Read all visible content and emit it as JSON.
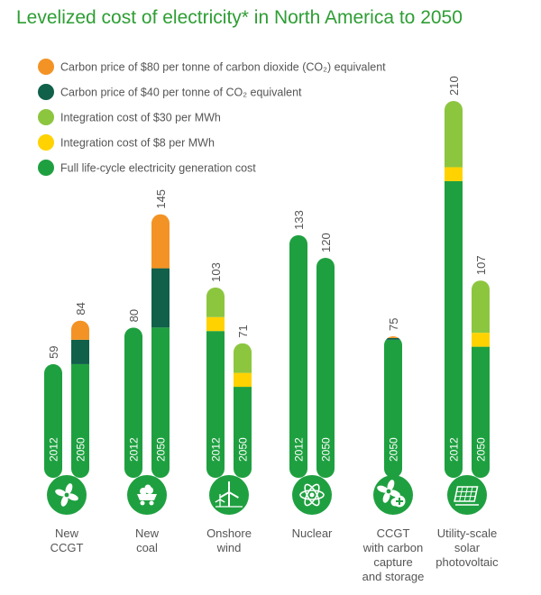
{
  "title": "Levelized cost of electricity* in North America to 2050",
  "colors": {
    "carbon80": "#f39325",
    "carbon40": "#10604a",
    "integration30": "#8cc63f",
    "integration8": "#ffd200",
    "base": "#1fa040"
  },
  "legend": [
    {
      "key": "carbon80",
      "label": "Carbon price of $80 per tonne of carbon dioxide (CO₂) equivalent"
    },
    {
      "key": "carbon40",
      "label": "Carbon price of $40 per tonne of CO₂ equivalent"
    },
    {
      "key": "integration30",
      "label": "Integration cost of $30 per MWh"
    },
    {
      "key": "integration8",
      "label": "Integration cost of $8 per MWh"
    },
    {
      "key": "base",
      "label": "Full life-cycle electricity generation cost"
    }
  ],
  "chart_data": {
    "type": "bar",
    "title": "Levelized cost of electricity* in North America to 2050",
    "stacked": true,
    "legend_position": "top-left",
    "ylim": [
      0,
      210
    ],
    "series_order": [
      "base",
      "integration8",
      "integration30",
      "carbon40",
      "carbon80"
    ],
    "series_names": {
      "carbon80": "Carbon price of $80 per tonne of carbon dioxide (CO₂) equivalent",
      "carbon40": "Carbon price of $40 per tonne of CO₂ equivalent",
      "integration30": "Integration cost of $30 per MWh",
      "integration8": "Integration cost of $8 per MWh",
      "base": "Full life-cycle electricity generation cost"
    },
    "categories": [
      {
        "label": [
          "New",
          "CCGT"
        ],
        "icon": "fan-icon",
        "bars": [
          {
            "year": "2012",
            "total": 59,
            "segments": {
              "base": 59
            }
          },
          {
            "year": "2050",
            "total": 84,
            "segments": {
              "base": 59,
              "carbon40": 14,
              "carbon80": 11
            }
          }
        ]
      },
      {
        "label": [
          "New",
          "coal"
        ],
        "icon": "coal-cart-icon",
        "bars": [
          {
            "year": "2012",
            "total": 80,
            "segments": {
              "base": 80
            }
          },
          {
            "year": "2050",
            "total": 145,
            "segments": {
              "base": 80,
              "carbon40": 34,
              "carbon80": 31
            }
          }
        ]
      },
      {
        "label": [
          "Onshore",
          "wind"
        ],
        "icon": "wind-turbine-icon",
        "bars": [
          {
            "year": "2012",
            "total": 103,
            "segments": {
              "base": 78,
              "integration8": 8,
              "integration30": 17
            }
          },
          {
            "year": "2050",
            "total": 71,
            "segments": {
              "base": 46,
              "integration8": 8,
              "integration30": 17
            }
          }
        ]
      },
      {
        "label": [
          "Nuclear"
        ],
        "icon": "atom-icon",
        "bars": [
          {
            "year": "2012",
            "total": 133,
            "segments": {
              "base": 133
            }
          },
          {
            "year": "2050",
            "total": 120,
            "segments": {
              "base": 120
            }
          }
        ]
      },
      {
        "label": [
          "CCGT",
          "with carbon",
          "capture",
          "and storage"
        ],
        "icon": "fan-plus-icon",
        "bars": [
          {
            "year": "2050",
            "total": 75,
            "segments": {
              "base": 73,
              "carbon40": 1,
              "carbon80": 1
            }
          }
        ]
      },
      {
        "label": [
          "Utility-scale",
          "solar",
          "photovoltaic"
        ],
        "icon": "solar-panel-icon",
        "bars": [
          {
            "year": "2012",
            "total": 210,
            "segments": {
              "base": 164,
              "integration8": 8,
              "integration30": 38
            }
          },
          {
            "year": "2050",
            "total": 107,
            "segments": {
              "base": 69,
              "integration8": 8,
              "integration30": 30
            }
          }
        ]
      }
    ]
  }
}
